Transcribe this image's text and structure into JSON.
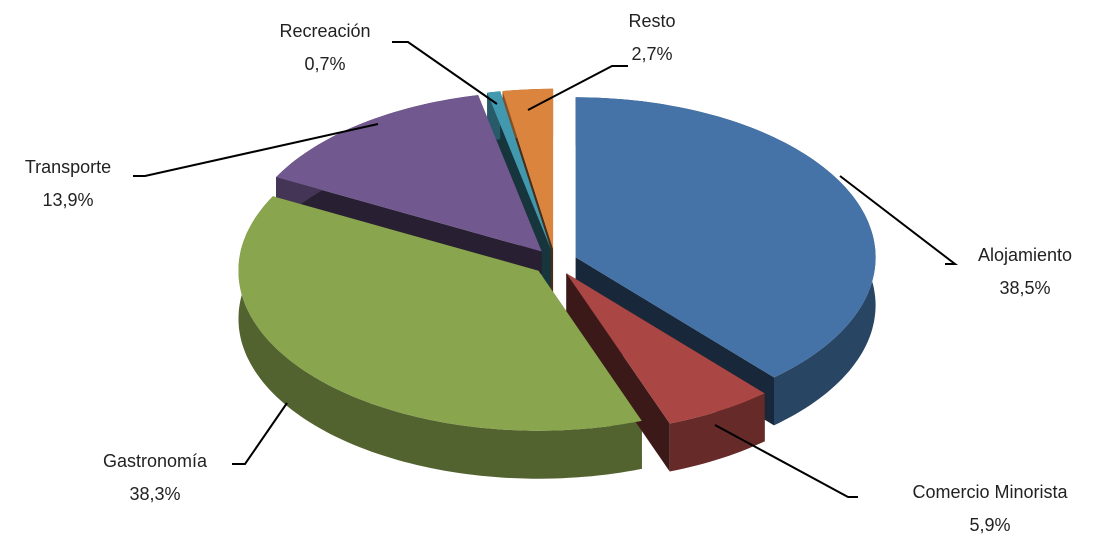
{
  "chart_data": {
    "type": "pie",
    "categories": [
      "Alojamiento",
      "Comercio Minorista",
      "Gastronomía",
      "Transporte",
      "Recreación",
      "Resto"
    ],
    "values": [
      38.5,
      5.9,
      38.3,
      13.9,
      0.7,
      2.7
    ],
    "value_labels": [
      "38,5%",
      "5,9%",
      "38,3%",
      "13,9%",
      "0,7%",
      "2,7%"
    ],
    "colors": [
      "#4573a7",
      "#aa4644",
      "#89a54e",
      "#71588f",
      "#4198af",
      "#db843d"
    ]
  }
}
